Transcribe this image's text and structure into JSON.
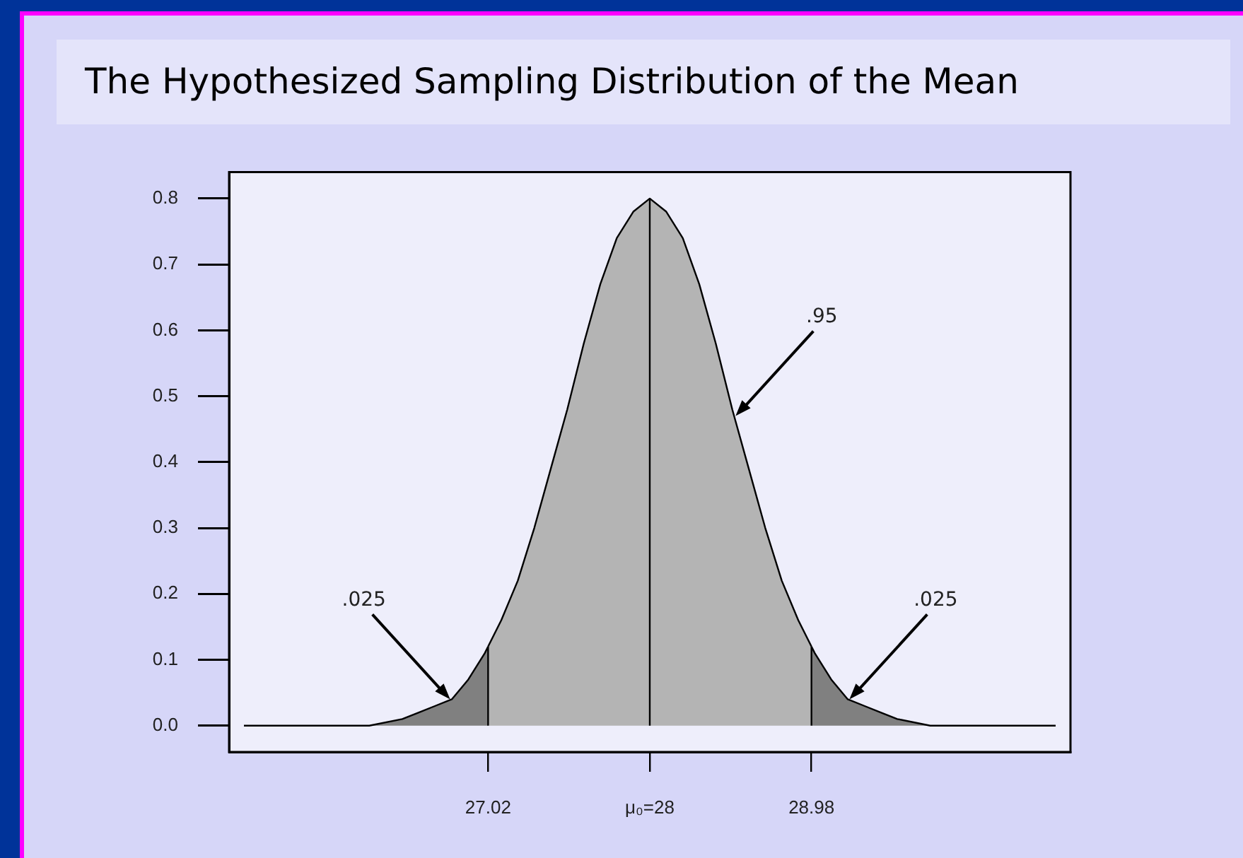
{
  "chart_data": {
    "type": "area",
    "title": "The Hypothesized Sampling Distribution of the Mean",
    "xlim": [
      25.45,
      30.55
    ],
    "xticks": [
      27.02,
      {
        "value": 28,
        "label": "μ₀=28"
      },
      28.98
    ],
    "ylim": [
      -0.04,
      0.84
    ],
    "yticks": [
      {
        "value": 0,
        "label": "0.0"
      },
      0.1,
      0.2,
      0.3,
      0.4,
      0.5,
      0.6,
      0.7,
      0.8
    ],
    "series": [
      {
        "color": "#808080",
        "x": [
          25.54,
          26.0,
          26.3,
          26.5,
          26.6,
          26.7,
          26.8,
          26.9,
          27.0,
          27.02
        ],
        "values": [
          0,
          0,
          0,
          0.01,
          0.02,
          0.03,
          0.04,
          0.07,
          0.11,
          0.12
        ]
      },
      {
        "color": "#b4b4b4",
        "x": [
          27.02,
          27.1,
          27.2,
          27.3,
          27.4,
          27.5,
          27.6,
          27.7,
          27.8,
          27.9,
          28.0,
          28.1,
          28.2,
          28.3,
          28.4,
          28.5,
          28.6,
          28.7,
          28.8,
          28.9,
          28.98
        ],
        "values": [
          0.12,
          0.16,
          0.22,
          0.3,
          0.39,
          0.48,
          0.58,
          0.67,
          0.74,
          0.78,
          0.8,
          0.78,
          0.74,
          0.67,
          0.58,
          0.48,
          0.39,
          0.3,
          0.22,
          0.16,
          0.12
        ]
      },
      {
        "color": "#808080",
        "x": [
          28.98,
          29.0,
          29.1,
          29.2,
          29.3,
          29.4,
          29.5,
          29.7,
          30.0,
          30.46
        ],
        "values": [
          0.12,
          0.11,
          0.07,
          0.04,
          0.03,
          0.02,
          0.01,
          0,
          0,
          0
        ]
      }
    ],
    "ref_lines": [
      {
        "axis": "x",
        "value": 27.02,
        "color": "#000000"
      },
      {
        "axis": "x",
        "value": 28,
        "color": "#000000"
      },
      {
        "axis": "x",
        "value": 28.98,
        "color": "#000000"
      }
    ],
    "annotations": [
      {
        "text": ".025",
        "x": 26.79,
        "y": 0.04
      },
      {
        "text": ".95",
        "x": 28.52,
        "y": 0.47
      },
      {
        "text": ".025",
        "x": 29.21,
        "y": 0.04
      }
    ],
    "grid": false,
    "legend": false
  }
}
